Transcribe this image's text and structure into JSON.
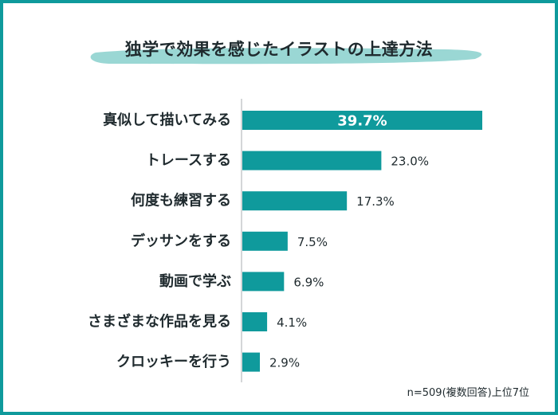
{
  "chart_data": {
    "type": "bar",
    "orientation": "horizontal",
    "title": "独学で効果を感じたイラストの上達方法",
    "categories": [
      "真似して描いてみる",
      "トレースする",
      "何度も練習する",
      "デッサンをする",
      "動画で学ぶ",
      "さまざまな作品を見る",
      "クロッキーを行う"
    ],
    "values": [
      39.7,
      23.0,
      17.3,
      7.5,
      6.9,
      4.1,
      2.9
    ],
    "value_labels": [
      "39.7%",
      "23.0%",
      "17.3%",
      "7.5%",
      "6.9%",
      "4.1%",
      "2.9%"
    ],
    "xlim": [
      0,
      39.7
    ],
    "grid": false,
    "legend": "none",
    "note": "n=509(複数回答)上位7位"
  },
  "colors": {
    "bar": "#0f9a9c",
    "frame": "#0f9a9c",
    "title_brush": "#8fd3cf",
    "text": "#1f2a2e",
    "axis": "#b8bcbe",
    "inner_label": "#ffffff"
  }
}
